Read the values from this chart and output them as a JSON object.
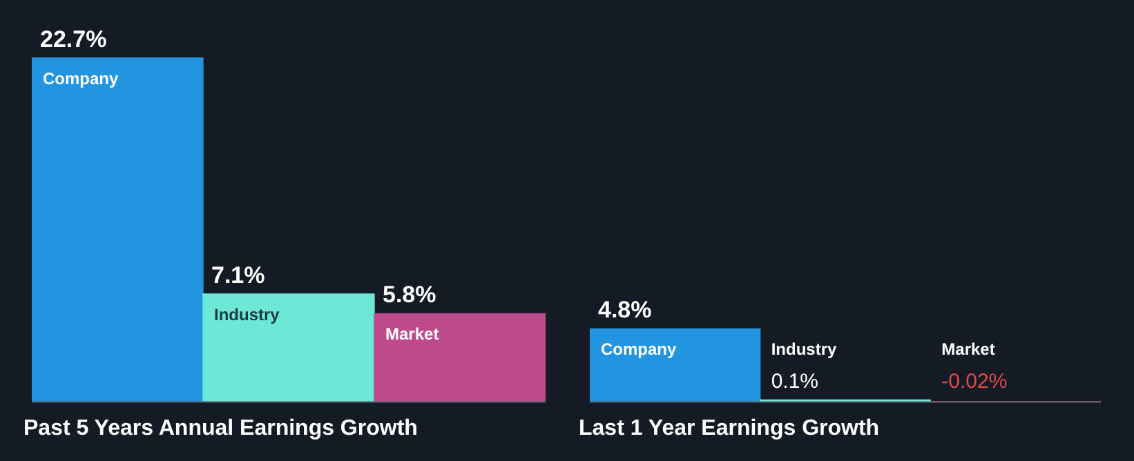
{
  "chart_data": [
    {
      "type": "bar",
      "title": "Past 5 Years Annual Earnings Growth",
      "categories": [
        "Company",
        "Industry",
        "Market"
      ],
      "values": [
        22.7,
        7.1,
        5.8
      ],
      "colors": [
        "#2394df",
        "#6de8d6",
        "#bd4a8a"
      ],
      "value_labels": [
        "22.7%",
        "7.1%",
        "5.8%"
      ]
    },
    {
      "type": "bar",
      "title": "Last 1 Year Earnings Growth",
      "categories": [
        "Company",
        "Industry",
        "Market"
      ],
      "values": [
        4.8,
        0.1,
        -0.02
      ],
      "colors": [
        "#2394df",
        "#6de8d6",
        "#bd4a8a"
      ],
      "value_labels": [
        "4.8%",
        "0.1%",
        "-0.02%"
      ]
    }
  ]
}
